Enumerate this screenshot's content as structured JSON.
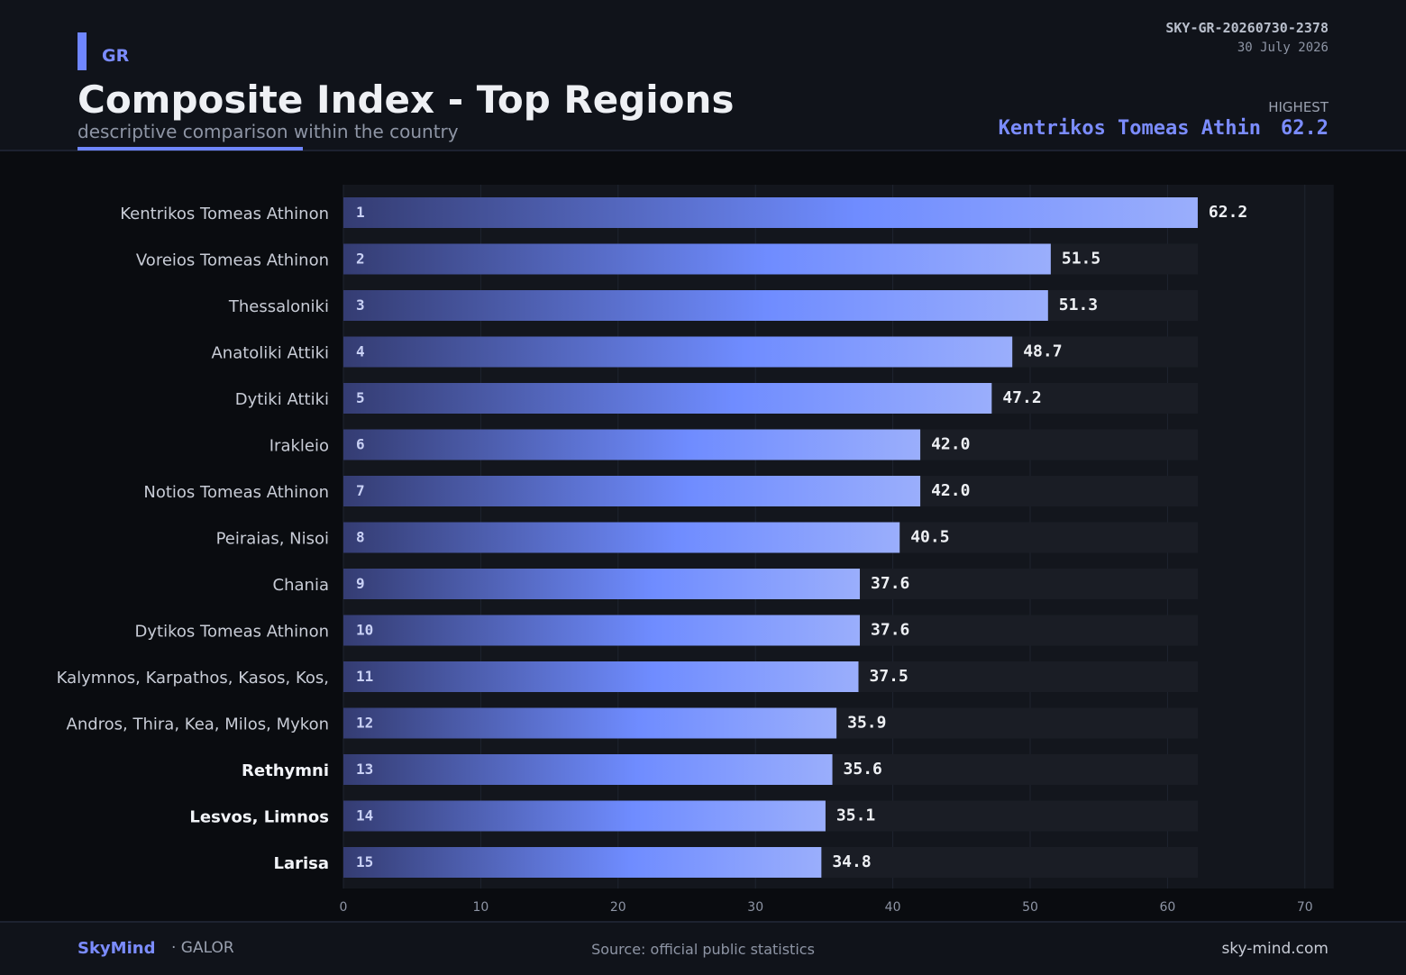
{
  "header": {
    "country": "GR",
    "title": "Composite Index - Top Regions",
    "subtitle": "descriptive comparison within the country",
    "doc_id": "SKY-GR-20260730-2378",
    "date": "30 July 2026",
    "highest_label": "HIGHEST",
    "highest_name": "Kentrikos Tomeas Athin",
    "highest_value": "62.2"
  },
  "footer": {
    "brand": "SkyMind",
    "brand_sub": "· GALOR",
    "source": "Source: official public statistics",
    "site": "sky-mind.com"
  },
  "colors": {
    "accent": "#6f86ff",
    "bar_dark": "#343c72",
    "bar_mid": "#6f8cff",
    "bar_light": "#9aaefc",
    "track": "#1a1d25",
    "plot_bg": "#13161d"
  },
  "chart_data": {
    "type": "bar",
    "orientation": "horizontal",
    "title": "Composite Index - Top Regions",
    "xlabel": "",
    "ylabel": "",
    "xlim": [
      0,
      70
    ],
    "xticks": [
      0,
      10,
      20,
      30,
      40,
      50,
      60,
      70
    ],
    "grid": true,
    "categories": [
      "Kentrikos Tomeas Athinon",
      "Voreios Tomeas Athinon",
      "Thessaloniki",
      "Anatoliki Attiki",
      "Dytiki Attiki",
      "Irakleio",
      "Notios Tomeas Athinon",
      "Peiraias, Nisoi",
      "Chania",
      "Dytikos Tomeas Athinon",
      "Kalymnos, Karpathos, Kasos, Kos,",
      "Andros, Thira, Kea, Milos, Mykon",
      "Rethymni",
      "Lesvos, Limnos",
      "Larisa"
    ],
    "ranks": [
      "1",
      "2",
      "3",
      "4",
      "5",
      "6",
      "7",
      "8",
      "9",
      "10",
      "11",
      "12",
      "13",
      "14",
      "15"
    ],
    "values": [
      62.2,
      51.5,
      51.3,
      48.7,
      47.2,
      42.0,
      42.0,
      40.5,
      37.6,
      37.6,
      37.5,
      35.9,
      35.6,
      35.1,
      34.8
    ],
    "value_labels": [
      "62.2",
      "51.5",
      "51.3",
      "48.7",
      "47.2",
      "42.0",
      "42.0",
      "40.5",
      "37.6",
      "37.6",
      "37.5",
      "35.9",
      "35.6",
      "35.1",
      "34.8"
    ],
    "bold_categories": [
      "Rethymni",
      "Lesvos, Limnos",
      "Larisa"
    ]
  }
}
